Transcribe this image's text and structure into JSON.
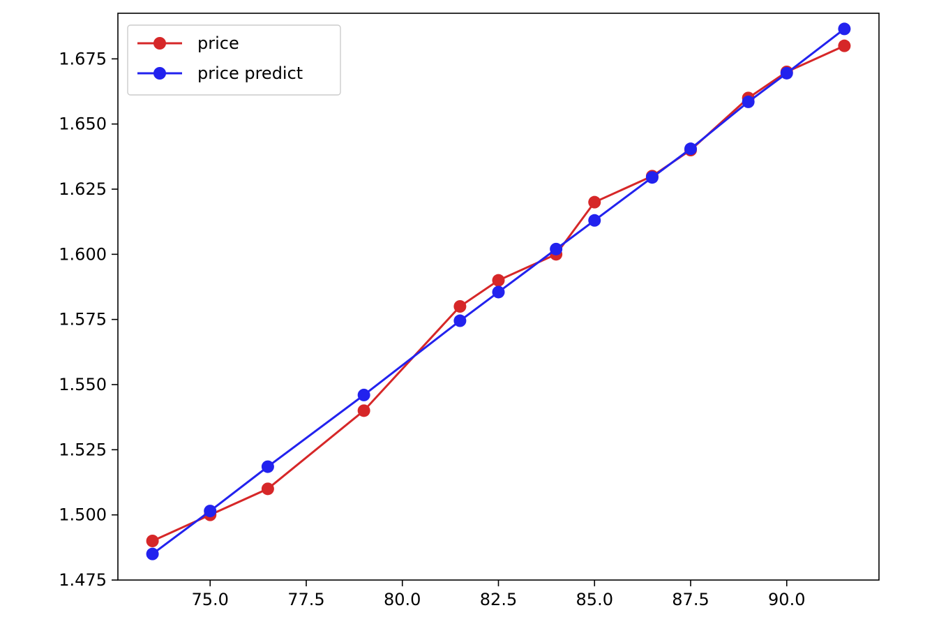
{
  "chart_data": {
    "type": "line",
    "title": "",
    "xlabel": "",
    "ylabel": "",
    "xlim": [
      72.6,
      92.4
    ],
    "ylim": [
      1.475,
      1.6925
    ],
    "x_ticks": [
      75.0,
      77.5,
      80.0,
      82.5,
      85.0,
      87.5,
      90.0
    ],
    "x_tick_labels": [
      "75.0",
      "77.5",
      "80.0",
      "82.5",
      "85.0",
      "87.5",
      "90.0"
    ],
    "y_ticks": [
      1.475,
      1.5,
      1.525,
      1.55,
      1.575,
      1.6,
      1.625,
      1.65,
      1.675
    ],
    "y_tick_labels": [
      "1.475",
      "1.500",
      "1.525",
      "1.550",
      "1.575",
      "1.600",
      "1.625",
      "1.650",
      "1.675"
    ],
    "grid": false,
    "legend_position": "top-left",
    "x": [
      73.5,
      75.0,
      76.5,
      79.0,
      81.5,
      82.5,
      84.0,
      85.0,
      86.5,
      87.5,
      89.0,
      90.0,
      91.5
    ],
    "series": [
      {
        "name": "price",
        "color": "#d62728",
        "values": [
          1.49,
          1.5,
          1.51,
          1.54,
          1.58,
          1.59,
          1.6,
          1.62,
          1.63,
          1.64,
          1.66,
          1.67,
          1.68
        ]
      },
      {
        "name": "price predict",
        "color": "#2222ee",
        "values": [
          1.485,
          1.5015,
          1.5185,
          1.546,
          1.5745,
          1.5855,
          1.602,
          1.613,
          1.6295,
          1.6405,
          1.6585,
          1.6695,
          1.6865
        ]
      }
    ]
  }
}
